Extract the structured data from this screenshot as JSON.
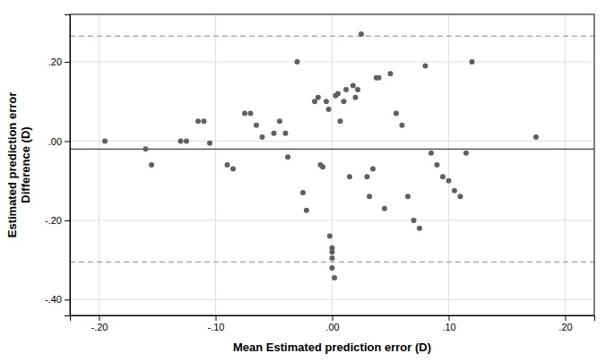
{
  "chart_data": {
    "type": "scatter",
    "x": [
      -0.195,
      -0.16,
      -0.155,
      -0.13,
      -0.125,
      -0.115,
      -0.11,
      -0.105,
      -0.09,
      -0.085,
      -0.075,
      -0.07,
      -0.065,
      -0.06,
      -0.05,
      -0.045,
      -0.04,
      -0.038,
      -0.03,
      -0.025,
      -0.022,
      -0.015,
      -0.012,
      -0.01,
      -0.008,
      -0.005,
      -0.003,
      -0.002,
      0.0,
      0.0,
      0.0,
      0.0,
      0.002,
      0.003,
      0.005,
      0.007,
      0.01,
      0.012,
      0.015,
      0.018,
      0.02,
      0.022,
      0.025,
      0.03,
      0.032,
      0.035,
      0.038,
      0.04,
      0.045,
      0.05,
      0.055,
      0.06,
      0.065,
      0.07,
      0.075,
      0.08,
      0.085,
      0.09,
      0.095,
      0.1,
      0.105,
      0.11,
      0.115,
      0.12,
      0.175
    ],
    "values": [
      0.0,
      -0.02,
      -0.06,
      0.0,
      0.0,
      0.05,
      0.05,
      -0.005,
      -0.06,
      -0.07,
      0.07,
      0.07,
      0.04,
      0.01,
      0.02,
      0.05,
      0.02,
      -0.04,
      0.2,
      -0.13,
      -0.175,
      0.1,
      0.11,
      -0.06,
      -0.065,
      0.1,
      0.08,
      -0.24,
      -0.27,
      -0.28,
      -0.295,
      -0.32,
      -0.345,
      0.115,
      0.12,
      0.05,
      0.1,
      0.13,
      -0.09,
      0.14,
      0.11,
      0.13,
      0.27,
      -0.09,
      -0.14,
      -0.07,
      0.16,
      0.16,
      -0.17,
      0.17,
      0.07,
      0.04,
      -0.14,
      -0.2,
      -0.22,
      0.19,
      -0.03,
      -0.06,
      -0.09,
      -0.1,
      -0.125,
      -0.14,
      -0.03,
      0.2,
      0.01
    ],
    "color": "#606060",
    "mean_line": -0.02,
    "upper_loa": 0.265,
    "lower_loa": -0.305,
    "xlim": [
      -0.225,
      0.225
    ],
    "ylim": [
      -0.44,
      0.32
    ],
    "xticks": [
      {
        "value": -0.2,
        "label": "-.20"
      },
      {
        "value": -0.1,
        "label": "-.10"
      },
      {
        "value": 0.0,
        "label": ".00"
      },
      {
        "value": 0.1,
        "label": ".10"
      },
      {
        "value": 0.2,
        "label": ".20"
      }
    ],
    "yticks": [
      {
        "value": -0.4,
        "label": "-.40"
      },
      {
        "value": -0.2,
        "label": "-.20"
      },
      {
        "value": 0.0,
        "label": ".00"
      },
      {
        "value": 0.2,
        "label": ".20"
      }
    ],
    "xlabel": "Mean Estimated prediction error (D)",
    "ylabel": "Estimated prediction error\nDifference (D)",
    "grid": true
  }
}
